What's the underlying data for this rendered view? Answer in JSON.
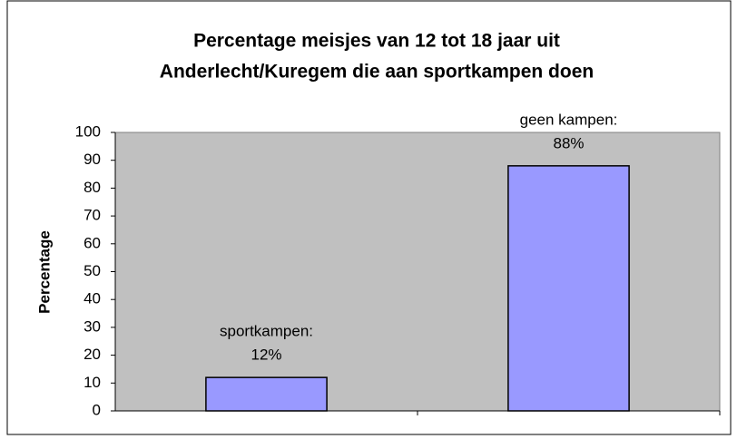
{
  "chart_data": {
    "type": "bar",
    "title": [
      "Percentage meisjes van 12 tot 18 jaar uit",
      "Anderlecht/Kuregem die aan sportkampen doen"
    ],
    "y_label": "Percentage",
    "categories": [
      "sportkampen:",
      "geen kampen:"
    ],
    "values": [
      12,
      88
    ],
    "value_labels": [
      "12%",
      "88%"
    ],
    "color": "#9999ff",
    "plot_background": "#c0c0c0",
    "ylim": [
      0,
      100
    ],
    "yticks": [
      0,
      10,
      20,
      30,
      40,
      50,
      60,
      70,
      80,
      90,
      100
    ],
    "grid": false
  }
}
